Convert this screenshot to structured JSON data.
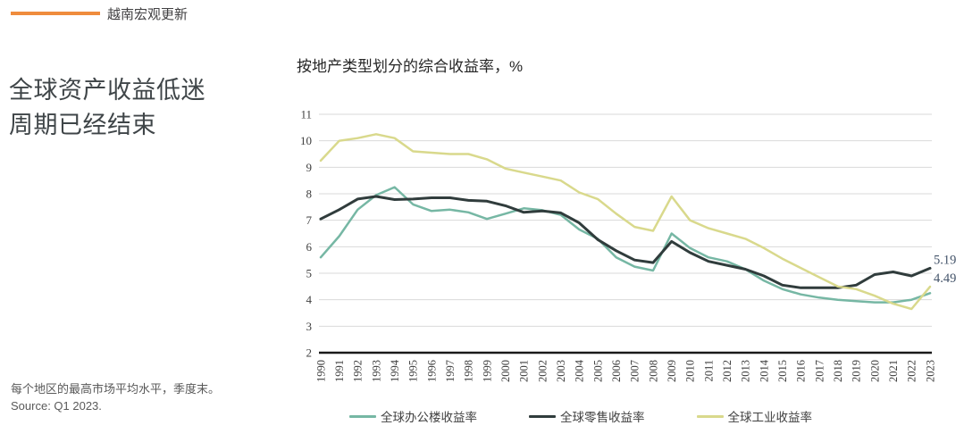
{
  "tag": {
    "label": "越南宏观更新",
    "bar_color": "#EF8C3D"
  },
  "headline": {
    "line1": "全球资产收益低迷",
    "line2": "周期已经结束"
  },
  "footnotes": [
    "每个地区的最高市场平均水平，季度末。",
    "Source: Q1 2023."
  ],
  "chart_data": {
    "type": "line",
    "title": "按地产类型划分的综合收益率，%",
    "x": [
      1990,
      1991,
      1992,
      1993,
      1994,
      1995,
      1996,
      1997,
      1998,
      1999,
      2000,
      2001,
      2002,
      2003,
      2004,
      2005,
      2006,
      2007,
      2008,
      2009,
      2010,
      2011,
      2012,
      2013,
      2014,
      2015,
      2016,
      2017,
      2018,
      2019,
      2020,
      2021,
      2022,
      2023
    ],
    "series": [
      {
        "name": "全球办公楼收益率",
        "color": "#76B7A4",
        "values": [
          5.6,
          6.4,
          7.4,
          7.95,
          8.25,
          7.6,
          7.35,
          7.4,
          7.3,
          7.05,
          7.25,
          7.45,
          7.38,
          7.2,
          6.65,
          6.3,
          5.6,
          5.25,
          5.1,
          6.5,
          5.95,
          5.6,
          5.45,
          5.15,
          4.72,
          4.4,
          4.2,
          4.08,
          4.0,
          3.95,
          3.9,
          3.9,
          4.0,
          4.25
        ]
      },
      {
        "name": "全球零售收益率",
        "color": "#303C3C",
        "values": [
          7.05,
          7.4,
          7.8,
          7.9,
          7.78,
          7.8,
          7.85,
          7.85,
          7.75,
          7.72,
          7.55,
          7.3,
          7.35,
          7.28,
          6.9,
          6.27,
          5.85,
          5.5,
          5.4,
          6.2,
          5.78,
          5.45,
          5.3,
          5.15,
          4.9,
          4.55,
          4.45,
          4.45,
          4.45,
          4.55,
          4.95,
          5.05,
          4.9,
          5.19
        ]
      },
      {
        "name": "全球工业收益率",
        "color": "#D9D98C",
        "values": [
          9.25,
          10.0,
          10.1,
          10.25,
          10.1,
          9.6,
          9.55,
          9.5,
          9.5,
          9.3,
          8.95,
          8.8,
          8.65,
          8.5,
          8.05,
          7.8,
          7.25,
          6.75,
          6.6,
          7.9,
          7.0,
          6.7,
          6.5,
          6.3,
          5.95,
          5.55,
          5.2,
          4.85,
          4.5,
          4.4,
          4.15,
          3.85,
          3.65,
          4.49
        ]
      }
    ],
    "ylim": [
      2,
      11
    ],
    "yticks": [
      2,
      3,
      4,
      5,
      6,
      7,
      8,
      9,
      10,
      11
    ],
    "grid": true,
    "legend_position": "bottom",
    "end_labels": [
      {
        "text": "5.19",
        "value": 5.19
      },
      {
        "text": "4.49",
        "value": 4.49
      }
    ],
    "colors": {
      "grid": "#D9D9D9",
      "axis": "#1A1A1A",
      "tick_text": "#404040",
      "end_label_text": "#44546A"
    }
  }
}
